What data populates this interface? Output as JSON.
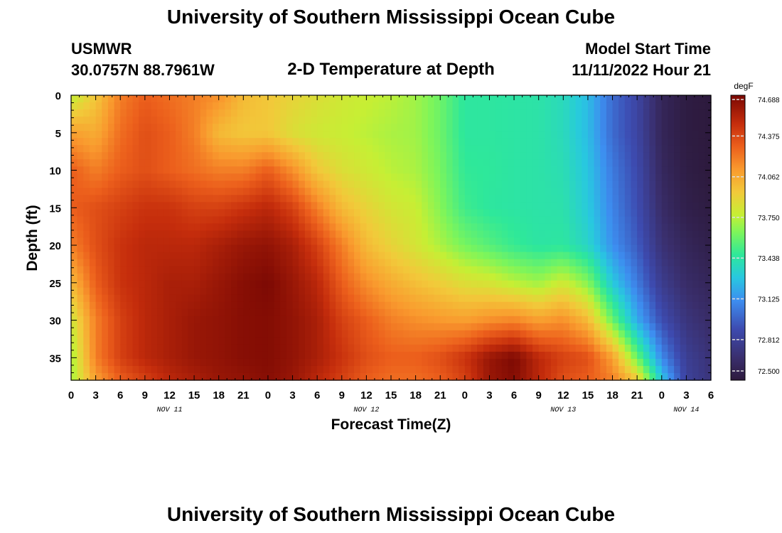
{
  "header": {
    "title": "University of Southern Mississippi Ocean Cube",
    "station": "USMWR",
    "coords": "30.0757N  88.7961W",
    "subtitle": "2-D Temperature at Depth",
    "model_start_label": "Model Start Time",
    "model_start_value": "11/11/2022 Hour 21"
  },
  "footer": {
    "title": "University of Southern Mississippi Ocean Cube"
  },
  "chart_data": {
    "type": "heatmap",
    "title": "2-D Temperature at Depth",
    "xlabel": "Forecast Time(Z)",
    "ylabel": "Depth (ft)",
    "x_start": "2022-11-11 00Z",
    "x_range_hours": [
      0,
      78
    ],
    "x_tick_labels": [
      "0",
      "3",
      "6",
      "9",
      "12",
      "15",
      "18",
      "21",
      "0",
      "3",
      "6",
      "9",
      "12",
      "15",
      "18",
      "21",
      "0",
      "3",
      "6",
      "9",
      "12",
      "15",
      "18",
      "21",
      "0",
      "3",
      "6"
    ],
    "date_labels": [
      {
        "label": "NOV 11",
        "hour": 12
      },
      {
        "label": "NOV 12",
        "hour": 36
      },
      {
        "label": "NOV 13",
        "hour": 60
      },
      {
        "label": "NOV 14",
        "hour": 75
      }
    ],
    "y_ticks": [
      0,
      5,
      10,
      15,
      20,
      25,
      30,
      35
    ],
    "y_range": [
      0,
      38
    ],
    "colorbar": {
      "unit": "degF",
      "min": 72.5,
      "max": 74.688,
      "tick_labels": [
        "74.688",
        "74.375",
        "74.062",
        "73.750",
        "73.438",
        "73.125",
        "72.812",
        "72.500"
      ],
      "tick_values": [
        74.688,
        74.375,
        74.062,
        73.75,
        73.438,
        73.125,
        72.812,
        72.5
      ]
    },
    "colormap": [
      [
        0.0,
        "#2d1a3d"
      ],
      [
        0.08,
        "#3a2f6e"
      ],
      [
        0.18,
        "#3d4bb0"
      ],
      [
        0.28,
        "#3d8ef0"
      ],
      [
        0.36,
        "#28c8e0"
      ],
      [
        0.44,
        "#2ee89a"
      ],
      [
        0.52,
        "#7ef55a"
      ],
      [
        0.58,
        "#c6ef34"
      ],
      [
        0.66,
        "#f2c93a"
      ],
      [
        0.74,
        "#f99a2e"
      ],
      [
        0.82,
        "#ec5f1c"
      ],
      [
        0.9,
        "#c52d0c"
      ],
      [
        1.0,
        "#7a0803"
      ]
    ],
    "value_grid_hours": [
      0,
      3,
      6,
      9,
      12,
      15,
      18,
      21,
      24,
      27,
      30,
      33,
      36,
      39,
      42,
      45,
      48,
      51,
      54,
      57,
      60,
      63,
      66,
      69,
      72,
      75,
      78
    ],
    "value_grid_depths": [
      0,
      5,
      10,
      15,
      20,
      25,
      30,
      35,
      38
    ],
    "values": [
      [
        73.75,
        74.1,
        74.3,
        74.3,
        74.2,
        74.0,
        73.8,
        73.7,
        73.7
      ],
      [
        73.95,
        74.05,
        74.2,
        74.35,
        74.35,
        74.3,
        74.2,
        74.2,
        74.1
      ],
      [
        74.2,
        74.25,
        74.3,
        74.4,
        74.45,
        74.45,
        74.4,
        74.4,
        74.3
      ],
      [
        74.3,
        74.35,
        74.35,
        74.45,
        74.5,
        74.5,
        74.5,
        74.5,
        74.4
      ],
      [
        74.25,
        74.3,
        74.3,
        74.45,
        74.5,
        74.55,
        74.55,
        74.55,
        74.5
      ],
      [
        74.2,
        74.2,
        74.25,
        74.4,
        74.5,
        74.55,
        74.6,
        74.6,
        74.55
      ],
      [
        74.15,
        74.0,
        74.2,
        74.4,
        74.55,
        74.6,
        74.62,
        74.62,
        74.6
      ],
      [
        74.0,
        73.95,
        74.2,
        74.45,
        74.6,
        74.65,
        74.65,
        74.65,
        74.62
      ],
      [
        73.95,
        73.95,
        74.3,
        74.5,
        74.62,
        74.68,
        74.66,
        74.66,
        74.65
      ],
      [
        73.9,
        73.85,
        74.15,
        74.4,
        74.55,
        74.6,
        74.62,
        74.62,
        74.6
      ],
      [
        73.85,
        73.8,
        73.95,
        74.2,
        74.4,
        74.5,
        74.55,
        74.55,
        74.5
      ],
      [
        73.8,
        73.78,
        73.85,
        74.0,
        74.2,
        74.3,
        74.4,
        74.45,
        74.4
      ],
      [
        73.78,
        73.75,
        73.8,
        73.9,
        74.0,
        74.15,
        74.3,
        74.35,
        74.3
      ],
      [
        73.75,
        73.72,
        73.75,
        73.82,
        73.9,
        74.05,
        74.2,
        74.3,
        74.25
      ],
      [
        73.7,
        73.7,
        73.72,
        73.78,
        73.82,
        73.98,
        74.15,
        74.3,
        74.25
      ],
      [
        73.6,
        73.6,
        73.62,
        73.65,
        73.72,
        73.92,
        74.12,
        74.35,
        74.3
      ],
      [
        73.45,
        73.45,
        73.47,
        73.5,
        73.62,
        73.85,
        74.1,
        74.45,
        74.4
      ],
      [
        73.45,
        73.45,
        73.46,
        73.45,
        73.55,
        73.82,
        74.15,
        74.6,
        74.6
      ],
      [
        73.44,
        73.44,
        73.44,
        73.44,
        73.48,
        73.75,
        74.18,
        74.68,
        74.66
      ],
      [
        73.43,
        73.43,
        73.43,
        73.43,
        73.44,
        73.7,
        74.1,
        74.5,
        74.5
      ],
      [
        73.38,
        73.38,
        73.4,
        73.42,
        73.45,
        73.8,
        74.15,
        74.4,
        74.35
      ],
      [
        73.25,
        73.25,
        73.28,
        73.3,
        73.35,
        73.65,
        74.0,
        74.35,
        74.3
      ],
      [
        73.0,
        73.0,
        73.05,
        73.08,
        73.12,
        73.3,
        73.6,
        74.1,
        74.2
      ],
      [
        72.85,
        72.85,
        72.88,
        72.9,
        72.95,
        73.05,
        73.2,
        73.6,
        73.95
      ],
      [
        72.6,
        72.6,
        72.62,
        72.65,
        72.7,
        72.78,
        72.9,
        73.1,
        73.3
      ],
      [
        72.52,
        72.52,
        72.53,
        72.55,
        72.6,
        72.65,
        72.72,
        72.8,
        72.82
      ],
      [
        72.5,
        72.5,
        72.5,
        72.52,
        72.55,
        72.6,
        72.65,
        72.7,
        72.72
      ]
    ]
  }
}
